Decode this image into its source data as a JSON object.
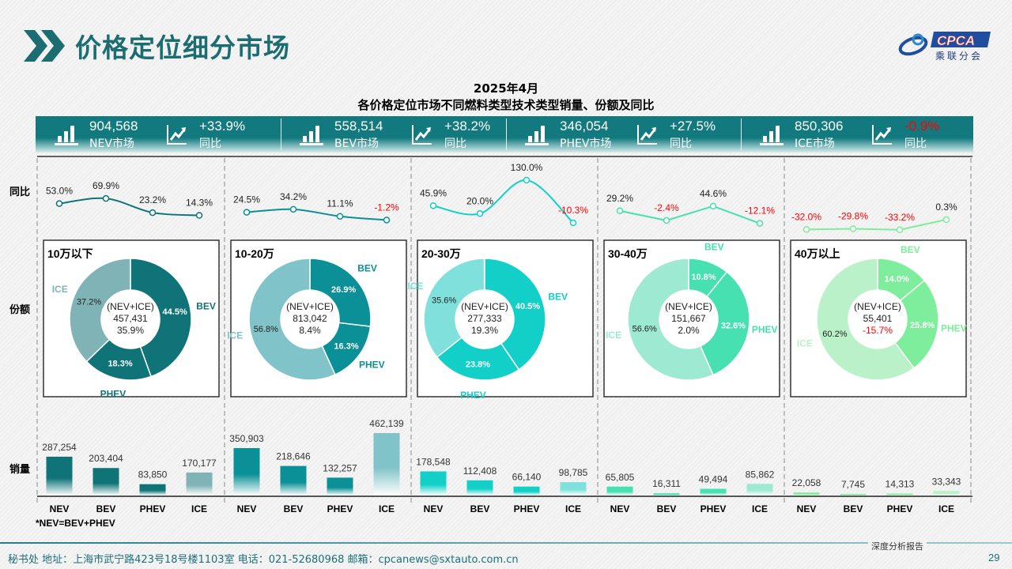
{
  "page": {
    "title": "价格定位细分市场",
    "chart_title_line1": "2025年4月",
    "chart_title_line2": "各价格定位市场不同燃料类型技术类型销量、份额及同比",
    "row_labels": {
      "yoy": "同比",
      "share": "份额",
      "sales": "销量"
    },
    "note": "*NEV=BEV+PHEV",
    "logo_text": "CPCA 乘联分会",
    "footer": "秘书处   地址：上海市武宁路423号18号楼1103室  电话：021-52680968   邮箱：cpcanews@sxtauto.com.cn",
    "footer_tag": "深度分析报告",
    "page_number": "29"
  },
  "header_stats": [
    {
      "value": "904,568",
      "label": "NEV市场",
      "yoy": "+33.9%",
      "yoy_label": "同比",
      "negative": false
    },
    {
      "value": "558,514",
      "label": "BEV市场",
      "yoy": "+38.2%",
      "yoy_label": "同比",
      "negative": false
    },
    {
      "value": "346,054",
      "label": "PHEV市场",
      "yoy": "+27.5%",
      "yoy_label": "同比",
      "negative": false
    },
    {
      "value": "850,306",
      "label": "ICE市场",
      "yoy": "-0.9%",
      "yoy_label": "同比",
      "negative": true
    }
  ],
  "colors": {
    "header": "#127a7e",
    "negative": "#ff0000",
    "title": "#1b6d72"
  },
  "chart_data": {
    "type": "composite",
    "categories": [
      "NEV",
      "BEV",
      "PHEV",
      "ICE"
    ],
    "segments": [
      {
        "name": "10万以下",
        "main_color": "#0f7377",
        "ice_color": "#7fb3b5",
        "smooth": true,
        "yoy": [
          "53.0%",
          "69.9%",
          "23.2%",
          "14.3%"
        ],
        "donut": {
          "center_label": "(NEV+ICE)",
          "total": "457,431",
          "total_yoy": "35.9%",
          "BEV": "44.5%",
          "PHEV": "18.3%",
          "ICE": "37.2%"
        },
        "sales": [
          "287,254",
          "203,404",
          "83,850",
          "170,177"
        ]
      },
      {
        "name": "10-20万",
        "main_color": "#0b9097",
        "ice_color": "#80c3c8",
        "smooth": true,
        "yoy": [
          "24.5%",
          "34.2%",
          "11.1%",
          "-1.2%"
        ],
        "donut": {
          "center_label": "(NEV+ICE)",
          "total": "813,042",
          "total_yoy": "8.4%",
          "BEV": "26.9%",
          "PHEV": "16.3%",
          "ICE": "56.8%"
        },
        "sales": [
          "350,903",
          "218,646",
          "132,257",
          "462,139"
        ]
      },
      {
        "name": "20-30万",
        "main_color": "#12d0c8",
        "ice_color": "#80e1dc",
        "smooth": true,
        "yoy": [
          "45.9%",
          "20.0%",
          "130.0%",
          "-10.3%"
        ],
        "donut": {
          "center_label": "(NEV+ICE)",
          "total": "277,333",
          "total_yoy": "19.3%",
          "BEV": "40.5%",
          "PHEV": "23.8%",
          "ICE": "35.6%"
        },
        "sales": [
          "178,548",
          "112,408",
          "66,140",
          "98,785"
        ]
      },
      {
        "name": "30-40万",
        "main_color": "#46e0b1",
        "ice_color": "#9de9d1",
        "smooth": false,
        "yoy": [
          "29.2%",
          "-2.4%",
          "44.6%",
          "-12.1%"
        ],
        "donut": {
          "center_label": "(NEV+ICE)",
          "total": "151,667",
          "total_yoy": "2.0%",
          "BEV": "10.8%",
          "PHEV": "32.6%",
          "ICE": "56.6%"
        },
        "sales": [
          "65,805",
          "16,311",
          "49,494",
          "85,862"
        ]
      },
      {
        "name": "40万以上",
        "main_color": "#7eed9c",
        "ice_color": "#bbf1c9",
        "smooth": false,
        "yoy": [
          "-32.0%",
          "-29.8%",
          "-33.2%",
          "0.3%"
        ],
        "donut": {
          "center_label": "(NEV+ICE)",
          "total": "55,401",
          "total_yoy": "-15.7%",
          "BEV": "14.0%",
          "PHEV": "25.8%",
          "ICE": "60.2%"
        },
        "sales": [
          "22,058",
          "7,745",
          "14,313",
          "33,343"
        ]
      }
    ]
  }
}
